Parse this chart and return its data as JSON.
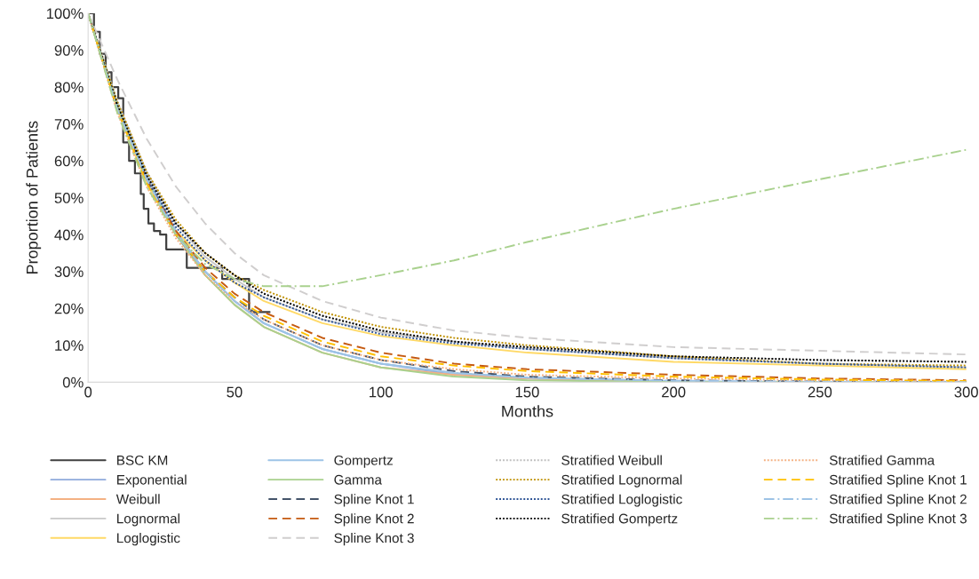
{
  "chart_data": {
    "type": "line",
    "xlabel": "Months",
    "ylabel": "Proportion of Patients",
    "x": [
      0,
      10,
      20,
      30,
      40,
      50,
      60,
      80,
      100,
      125,
      150,
      200,
      250,
      300
    ],
    "xlim": [
      0,
      300
    ],
    "xticks": [
      0,
      50,
      100,
      150,
      200,
      250,
      300
    ],
    "ylim": [
      0,
      100
    ],
    "yticks": [
      {
        "value": 0,
        "label": "0%"
      },
      {
        "value": 10,
        "label": "10%"
      },
      {
        "value": 20,
        "label": "20%"
      },
      {
        "value": 30,
        "label": "30%"
      },
      {
        "value": 40,
        "label": "40%"
      },
      {
        "value": 50,
        "label": "50%"
      },
      {
        "value": 60,
        "label": "60%"
      },
      {
        "value": 70,
        "label": "70%"
      },
      {
        "value": 80,
        "label": "80%"
      },
      {
        "value": 90,
        "label": "90%"
      },
      {
        "value": 100,
        "label": "100%"
      }
    ],
    "grid": false,
    "legend": "bottom",
    "series": [
      {
        "name": "BSC KM",
        "type": "step",
        "color": "#404040",
        "line_style": "solid",
        "x": [
          0,
          2,
          4,
          6,
          8,
          10.3,
          12,
          14,
          16,
          18,
          19,
          20.6,
          22.5,
          24.6,
          26.7,
          33.7,
          45.8,
          55,
          62
        ],
        "values": [
          100,
          95,
          89,
          84,
          80,
          77,
          65,
          60,
          56.6,
          51,
          47,
          43,
          41,
          40,
          36,
          31,
          28,
          19,
          19
        ]
      },
      {
        "name": "Exponential",
        "color": "#8faadc",
        "line_style": "solid",
        "values": [
          100,
          74,
          55,
          40,
          30,
          22,
          16,
          9,
          5,
          2,
          1,
          0,
          0,
          0
        ]
      },
      {
        "name": "Weibull",
        "color": "#f4b183",
        "line_style": "solid",
        "values": [
          100,
          74,
          54,
          40,
          29,
          21,
          15,
          8,
          4,
          2,
          1,
          0,
          0,
          0
        ]
      },
      {
        "name": "Lognormal",
        "color": "#c9c9c9",
        "line_style": "solid",
        "values": [
          100,
          76,
          57,
          43,
          34,
          28,
          23,
          17,
          13.5,
          11,
          9,
          6.5,
          5,
          4
        ]
      },
      {
        "name": "Loglogistic",
        "color": "#ffd966",
        "line_style": "solid",
        "values": [
          100,
          74,
          54,
          41,
          33,
          27,
          22,
          16,
          12.5,
          10,
          8,
          5.5,
          4.5,
          3.5
        ]
      },
      {
        "name": "Gompertz",
        "color": "#9dc3e6",
        "line_style": "solid",
        "values": [
          100,
          75,
          56,
          41,
          30,
          22,
          16,
          9,
          5,
          2.5,
          1.2,
          0.3,
          0,
          0
        ]
      },
      {
        "name": "Gamma",
        "color": "#a9d18e",
        "line_style": "solid",
        "values": [
          100,
          75,
          55,
          40,
          29,
          21,
          15,
          8,
          4,
          1.5,
          0.5,
          0,
          0,
          0
        ]
      },
      {
        "name": "Spline Knot 1",
        "color": "#44546a",
        "line_style": "dashed",
        "values": [
          100,
          74,
          55,
          40,
          30,
          23,
          17,
          10,
          6,
          3,
          1.5,
          0.5,
          0.2,
          0
        ]
      },
      {
        "name": "Spline Knot 2",
        "color": "#c55a11",
        "line_style": "dashed",
        "values": [
          100,
          74,
          55,
          41,
          31,
          24,
          19,
          12,
          8,
          5,
          3.5,
          2,
          1,
          0.5
        ]
      },
      {
        "name": "Spline Knot 3",
        "color": "#d0cece",
        "line_style": "dashed",
        "values": [
          100,
          82,
          66,
          53,
          43,
          35,
          29,
          22,
          17.5,
          14,
          12,
          9.5,
          8.5,
          7.5
        ]
      },
      {
        "name": "Stratified Weibull",
        "color": "#bfbfbf",
        "line_style": "dotted",
        "values": [
          100,
          75,
          56,
          43,
          35,
          29,
          24,
          18,
          14,
          11,
          9.5,
          7,
          6,
          5.5
        ]
      },
      {
        "name": "Stratified Lognormal",
        "color": "#bf9000",
        "line_style": "dotted",
        "values": [
          100,
          76,
          57,
          44,
          35,
          29,
          25,
          19,
          15,
          12,
          10,
          7,
          5,
          4.5
        ]
      },
      {
        "name": "Stratified Loglogistic",
        "color": "#2f5597",
        "line_style": "dotted",
        "values": [
          100,
          75,
          55,
          42,
          33,
          27,
          23,
          17,
          13,
          10.5,
          9,
          6.5,
          5,
          4
        ]
      },
      {
        "name": "Stratified Gompertz",
        "color": "#000000",
        "line_style": "dotted",
        "values": [
          100,
          75,
          56,
          43,
          35,
          29,
          24,
          18,
          14,
          11,
          9.5,
          7,
          6,
          5.5
        ]
      },
      {
        "name": "Stratified Gamma",
        "color": "#f4b183",
        "line_style": "dotted",
        "values": [
          100,
          73,
          53,
          39,
          29,
          22,
          17,
          10,
          6,
          3.5,
          2,
          1,
          0.5,
          0.3
        ]
      },
      {
        "name": "Stratified Spline Knot 1",
        "color": "#ffc000",
        "line_style": "dashed",
        "values": [
          100,
          74,
          54,
          40,
          30,
          23,
          18,
          11,
          7,
          4.5,
          3,
          1.5,
          0.7,
          0.3
        ]
      },
      {
        "name": "Stratified Spline Knot 2",
        "color": "#9dc3e6",
        "line_style": "dashdot",
        "values": [
          100,
          74,
          55,
          40,
          30,
          22,
          16,
          9,
          5,
          2.5,
          1.2,
          0.4,
          0.1,
          0
        ]
      },
      {
        "name": "Stratified Spline Knot 3",
        "color": "#a9d18e",
        "line_style": "dashdot",
        "values": [
          100,
          73,
          53,
          40,
          32,
          28,
          26,
          26,
          29,
          33,
          38,
          47,
          55,
          63
        ]
      }
    ]
  }
}
